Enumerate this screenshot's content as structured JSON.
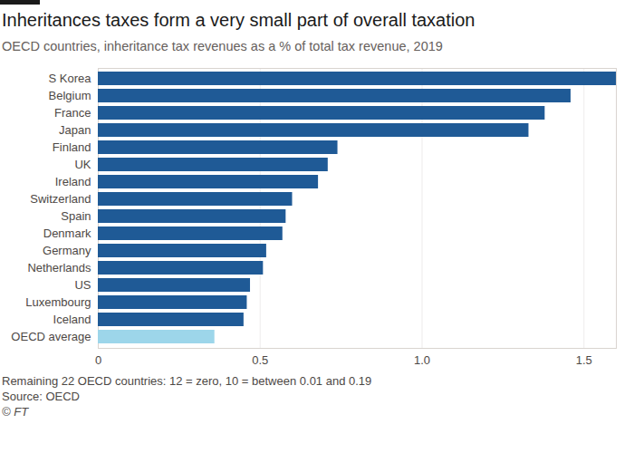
{
  "chart_data": {
    "type": "bar",
    "orientation": "horizontal",
    "title": "Inheritances taxes form a very small part of overall taxation",
    "subtitle": "OECD countries, inheritance tax revenues as a % of total tax revenue, 2019",
    "note": "Remaining 22 OECD countries: 12 = zero, 10 = between 0.01 and 0.19",
    "source": "Source: OECD",
    "credit": "© FT",
    "categories": [
      "S Korea",
      "Belgium",
      "France",
      "Japan",
      "Finland",
      "UK",
      "Ireland",
      "Switzerland",
      "Spain",
      "Denmark",
      "Germany",
      "Netherlands",
      "US",
      "Luxembourg",
      "Iceland",
      "OECD average"
    ],
    "values": [
      1.6,
      1.46,
      1.38,
      1.33,
      0.74,
      0.71,
      0.68,
      0.6,
      0.58,
      0.57,
      0.52,
      0.51,
      0.47,
      0.46,
      0.45,
      0.36
    ],
    "colors": [
      "#1f5a96",
      "#1f5a96",
      "#1f5a96",
      "#1f5a96",
      "#1f5a96",
      "#1f5a96",
      "#1f5a96",
      "#1f5a96",
      "#1f5a96",
      "#1f5a96",
      "#1f5a96",
      "#1f5a96",
      "#1f5a96",
      "#1f5a96",
      "#1f5a96",
      "#9dd6ea"
    ],
    "xlim": [
      0,
      1.6
    ],
    "xticks": [
      0,
      0.5,
      {
        "value": 1,
        "label": "1.0"
      },
      1.5
    ],
    "grid": true
  }
}
